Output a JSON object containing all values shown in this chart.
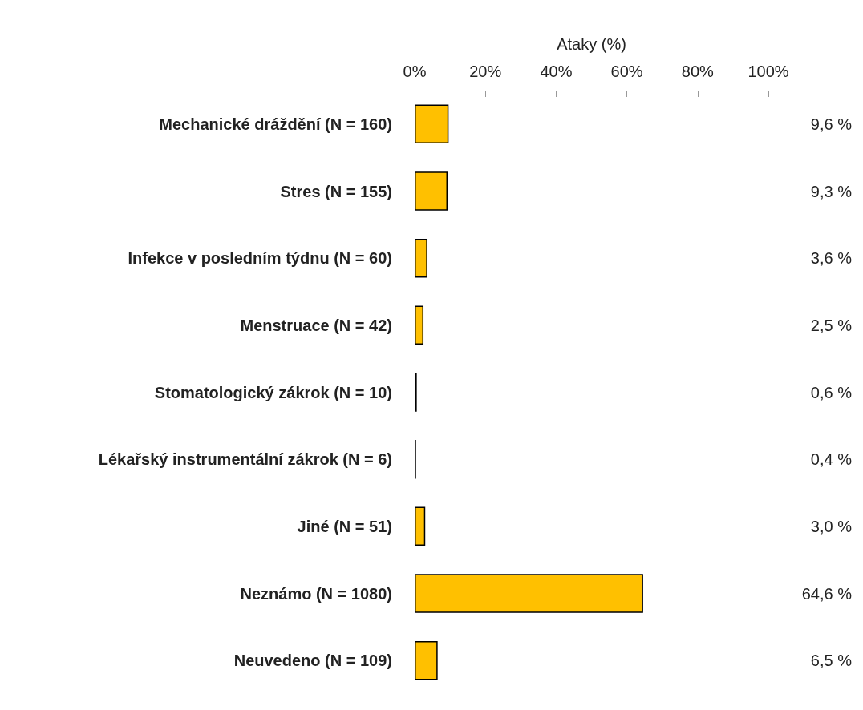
{
  "chart_data": {
    "type": "bar",
    "orientation": "horizontal",
    "xlabel": "Ataky (%)",
    "categories": [
      "Mechanické dráždění (N = 160)",
      "Stres (N = 155)",
      "Infekce v posledním týdnu (N = 60)",
      "Menstruace (N = 42)",
      "Stomatologický zákrok (N = 10)",
      "Lékařský instrumentální zákrok (N = 6)",
      "Jiné (N = 51)",
      "Neznámo (N = 1080)",
      "Neuvedeno (N = 109)"
    ],
    "values": [
      9.6,
      9.3,
      3.6,
      2.5,
      0.6,
      0.4,
      3.0,
      64.6,
      6.5
    ],
    "value_labels": [
      "9,6 %",
      "9,3 %",
      "3,6 %",
      "2,5 %",
      "0,6 %",
      "0,4 %",
      "3,0 %",
      "64,6 %",
      "6,5 %"
    ],
    "color": "#ffc000",
    "xlim": [
      0,
      100
    ],
    "xticks": [
      {
        "value": 0,
        "label": "0%"
      },
      {
        "value": 20,
        "label": "20%"
      },
      {
        "value": 40,
        "label": "40%"
      },
      {
        "value": 60,
        "label": "60%"
      },
      {
        "value": 80,
        "label": "80%"
      },
      {
        "value": 100,
        "label": "100%"
      }
    ],
    "grid": false
  }
}
